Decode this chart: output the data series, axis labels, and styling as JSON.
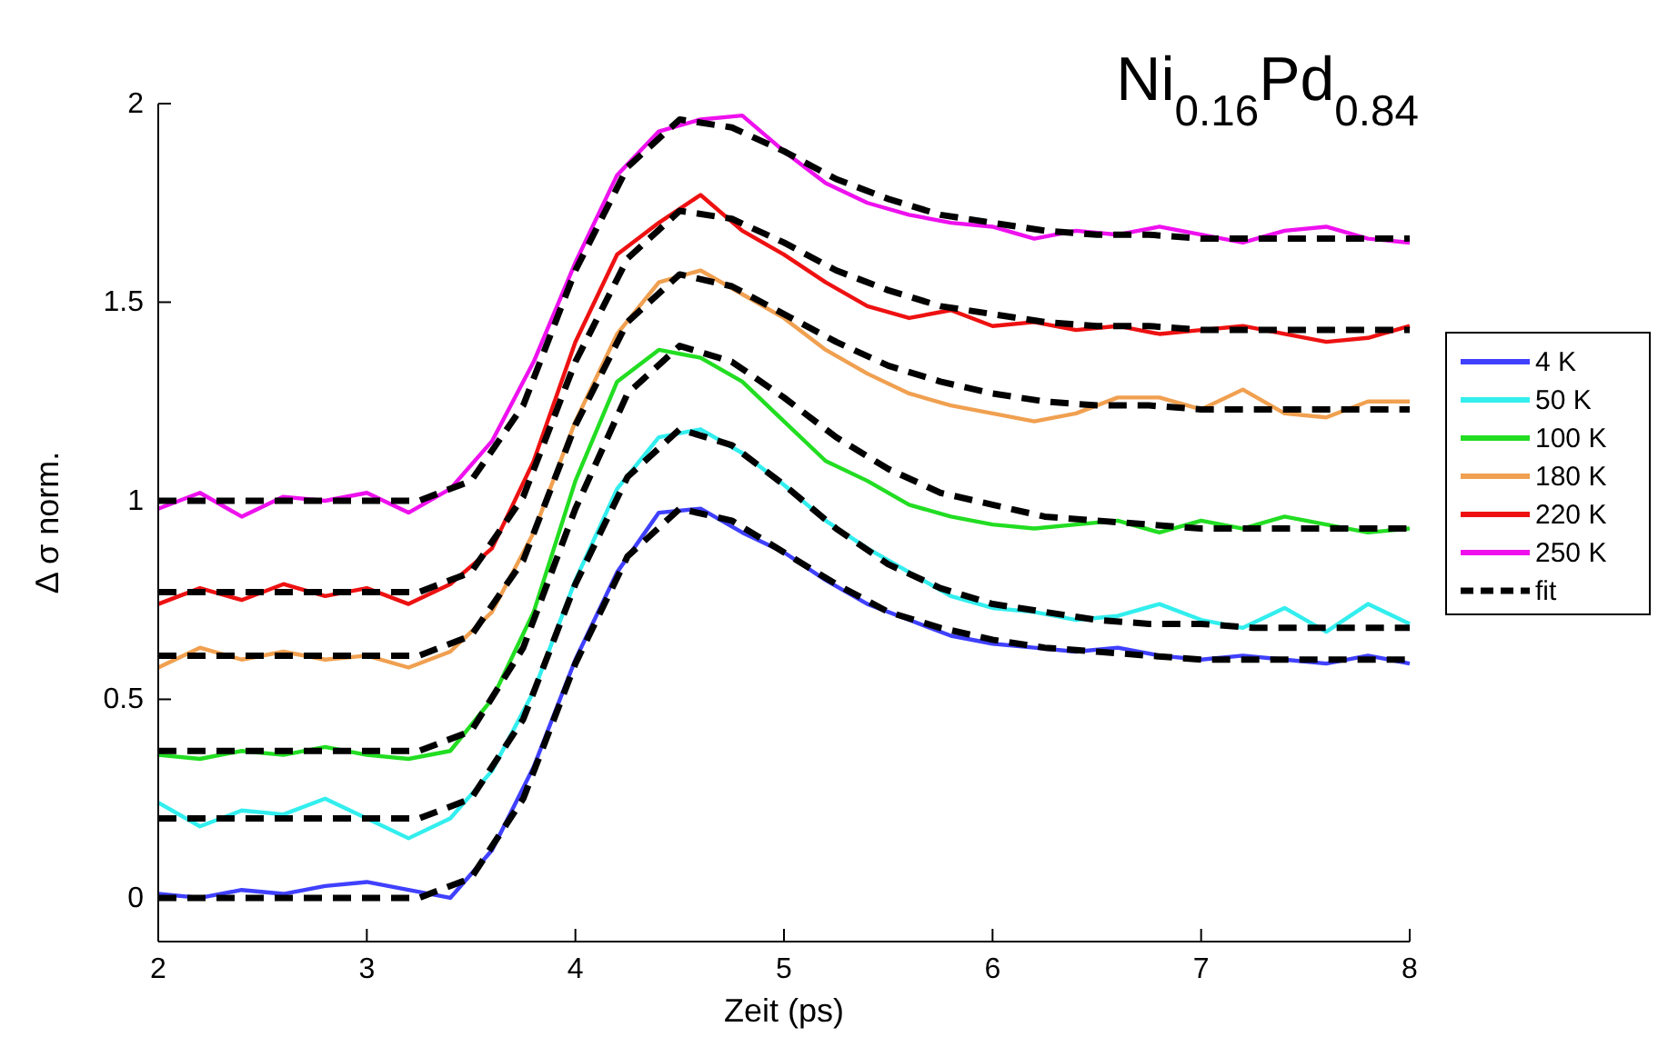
{
  "chart_data": {
    "type": "line",
    "title": "Ni$_{0.16}$Pd$_{0.84}$",
    "xlabel": "Zeit (ps)",
    "ylabel": "Δ σ norm.",
    "xlim": [
      2,
      8
    ],
    "ylim": [
      -0.11,
      2
    ],
    "xticks": [
      2,
      3,
      4,
      5,
      6,
      7,
      8
    ],
    "yticks": [
      0,
      0.5,
      1,
      1.5,
      2
    ],
    "legend": "right",
    "line_style": "solid",
    "marker": "none",
    "x": [
      2.0,
      2.2,
      2.4,
      2.6,
      2.8,
      3.0,
      3.2,
      3.4,
      3.6,
      3.8,
      4.0,
      4.2,
      4.4,
      4.6,
      4.8,
      5.0,
      5.2,
      5.4,
      5.6,
      5.8,
      6.0,
      6.2,
      6.4,
      6.6,
      6.8,
      7.0,
      7.2,
      7.4,
      7.6,
      7.8,
      8.0
    ],
    "series": [
      {
        "name": "4 K",
        "color": "#4040ff",
        "values": [
          0.01,
          0.0,
          0.02,
          0.01,
          0.03,
          0.04,
          0.02,
          0.0,
          0.12,
          0.33,
          0.6,
          0.82,
          0.97,
          0.98,
          0.92,
          0.87,
          0.8,
          0.74,
          0.7,
          0.66,
          0.64,
          0.63,
          0.62,
          0.63,
          0.61,
          0.6,
          0.61,
          0.6,
          0.59,
          0.61,
          0.59
        ]
      },
      {
        "name": "50 K",
        "color": "#33eeee",
        "values": [
          0.24,
          0.18,
          0.22,
          0.21,
          0.25,
          0.2,
          0.15,
          0.2,
          0.32,
          0.52,
          0.8,
          1.03,
          1.16,
          1.18,
          1.12,
          1.04,
          0.95,
          0.88,
          0.82,
          0.76,
          0.73,
          0.72,
          0.7,
          0.71,
          0.74,
          0.7,
          0.68,
          0.73,
          0.67,
          0.74,
          0.69
        ]
      },
      {
        "name": "100 K",
        "color": "#22dd22",
        "values": [
          0.36,
          0.35,
          0.37,
          0.36,
          0.38,
          0.36,
          0.35,
          0.37,
          0.5,
          0.72,
          1.05,
          1.3,
          1.38,
          1.36,
          1.3,
          1.2,
          1.1,
          1.05,
          0.99,
          0.96,
          0.94,
          0.93,
          0.94,
          0.95,
          0.92,
          0.95,
          0.93,
          0.96,
          0.94,
          0.92,
          0.93
        ]
      },
      {
        "name": "180 K",
        "color": "#f0a050",
        "values": [
          0.58,
          0.63,
          0.6,
          0.62,
          0.6,
          0.61,
          0.58,
          0.62,
          0.72,
          0.92,
          1.2,
          1.42,
          1.55,
          1.58,
          1.52,
          1.46,
          1.38,
          1.32,
          1.27,
          1.24,
          1.22,
          1.2,
          1.22,
          1.26,
          1.26,
          1.23,
          1.28,
          1.22,
          1.21,
          1.25,
          1.25
        ]
      },
      {
        "name": "220 K",
        "color": "#ee1111",
        "values": [
          0.74,
          0.78,
          0.75,
          0.79,
          0.76,
          0.78,
          0.74,
          0.79,
          0.88,
          1.1,
          1.4,
          1.62,
          1.7,
          1.77,
          1.68,
          1.62,
          1.55,
          1.49,
          1.46,
          1.48,
          1.44,
          1.45,
          1.43,
          1.44,
          1.42,
          1.43,
          1.44,
          1.42,
          1.4,
          1.41,
          1.44
        ]
      },
      {
        "name": "250 K",
        "color": "#ee11ee",
        "values": [
          0.98,
          1.02,
          0.96,
          1.01,
          1.0,
          1.02,
          0.97,
          1.03,
          1.15,
          1.35,
          1.6,
          1.82,
          1.93,
          1.96,
          1.97,
          1.88,
          1.8,
          1.75,
          1.72,
          1.7,
          1.69,
          1.66,
          1.68,
          1.67,
          1.69,
          1.67,
          1.65,
          1.68,
          1.69,
          1.66,
          1.65
        ]
      },
      {
        "name": "fit",
        "color": "#000000",
        "line_style": "dashed",
        "x": [
          2,
          2.25,
          2.5,
          2.75,
          3,
          3.25,
          3.5,
          3.75,
          4,
          4.25,
          4.5,
          4.75,
          5,
          5.25,
          5.5,
          5.75,
          6,
          6.25,
          6.5,
          6.75,
          7,
          7.25,
          7.5,
          7.75,
          8
        ],
        "values": [
          0,
          0,
          0,
          0,
          0,
          0,
          0.05,
          0.25,
          0.59,
          0.86,
          0.98,
          0.95,
          0.87,
          0.79,
          0.72,
          0.68,
          0.65,
          0.63,
          0.62,
          0.61,
          0.6,
          0.6,
          0.6,
          0.6,
          0.6
        ]
      },
      {
        "color": "#000000",
        "line_style": "dashed",
        "x": [
          2,
          2.25,
          2.5,
          2.75,
          3,
          3.25,
          3.5,
          3.75,
          4,
          4.25,
          4.5,
          4.75,
          5,
          5.25,
          5.5,
          5.75,
          6,
          6.25,
          6.5,
          6.75,
          7,
          7.25,
          7.5,
          7.75,
          8
        ],
        "values": [
          0.2,
          0.2,
          0.2,
          0.2,
          0.2,
          0.2,
          0.25,
          0.45,
          0.79,
          1.06,
          1.18,
          1.14,
          1.04,
          0.93,
          0.84,
          0.78,
          0.74,
          0.72,
          0.7,
          0.69,
          0.69,
          0.68,
          0.68,
          0.68,
          0.68
        ]
      },
      {
        "color": "#000000",
        "line_style": "dashed",
        "x": [
          2,
          2.25,
          2.5,
          2.75,
          3,
          3.25,
          3.5,
          3.75,
          4,
          4.25,
          4.5,
          4.75,
          5,
          5.25,
          5.5,
          5.75,
          6,
          6.25,
          6.5,
          6.75,
          7,
          7.25,
          7.5,
          7.75,
          8
        ],
        "values": [
          0.37,
          0.37,
          0.37,
          0.37,
          0.37,
          0.37,
          0.42,
          0.63,
          0.98,
          1.27,
          1.39,
          1.35,
          1.26,
          1.16,
          1.08,
          1.02,
          0.99,
          0.96,
          0.95,
          0.94,
          0.93,
          0.93,
          0.93,
          0.93,
          0.93
        ]
      },
      {
        "color": "#000000",
        "line_style": "dashed",
        "x": [
          2,
          2.25,
          2.5,
          2.75,
          3,
          3.25,
          3.5,
          3.75,
          4,
          4.25,
          4.5,
          4.75,
          5,
          5.25,
          5.5,
          5.75,
          6,
          6.25,
          6.5,
          6.75,
          7,
          7.25,
          7.5,
          7.75,
          8
        ],
        "values": [
          0.61,
          0.61,
          0.61,
          0.61,
          0.61,
          0.61,
          0.66,
          0.85,
          1.19,
          1.45,
          1.57,
          1.54,
          1.47,
          1.4,
          1.34,
          1.3,
          1.27,
          1.25,
          1.24,
          1.24,
          1.23,
          1.23,
          1.23,
          1.23,
          1.23
        ]
      },
      {
        "color": "#000000",
        "line_style": "dashed",
        "x": [
          2,
          2.25,
          2.5,
          2.75,
          3,
          3.25,
          3.5,
          3.75,
          4,
          4.25,
          4.5,
          4.75,
          5,
          5.25,
          5.5,
          5.75,
          6,
          6.25,
          6.5,
          6.75,
          7,
          7.25,
          7.5,
          7.75,
          8
        ],
        "values": [
          0.77,
          0.77,
          0.77,
          0.77,
          0.77,
          0.77,
          0.82,
          1.01,
          1.35,
          1.61,
          1.73,
          1.71,
          1.65,
          1.58,
          1.53,
          1.49,
          1.47,
          1.45,
          1.44,
          1.44,
          1.43,
          1.43,
          1.43,
          1.43,
          1.43
        ]
      },
      {
        "color": "#000000",
        "line_style": "dashed",
        "x": [
          2,
          2.25,
          2.5,
          2.75,
          3,
          3.25,
          3.5,
          3.75,
          4,
          4.25,
          4.5,
          4.75,
          5,
          5.25,
          5.5,
          5.75,
          6,
          6.25,
          6.5,
          6.75,
          7,
          7.25,
          7.5,
          7.75,
          8
        ],
        "values": [
          1.0,
          1.0,
          1.0,
          1.0,
          1.0,
          1.0,
          1.05,
          1.24,
          1.58,
          1.84,
          1.96,
          1.94,
          1.88,
          1.81,
          1.76,
          1.72,
          1.7,
          1.68,
          1.67,
          1.67,
          1.66,
          1.66,
          1.66,
          1.66,
          1.66
        ]
      }
    ]
  }
}
